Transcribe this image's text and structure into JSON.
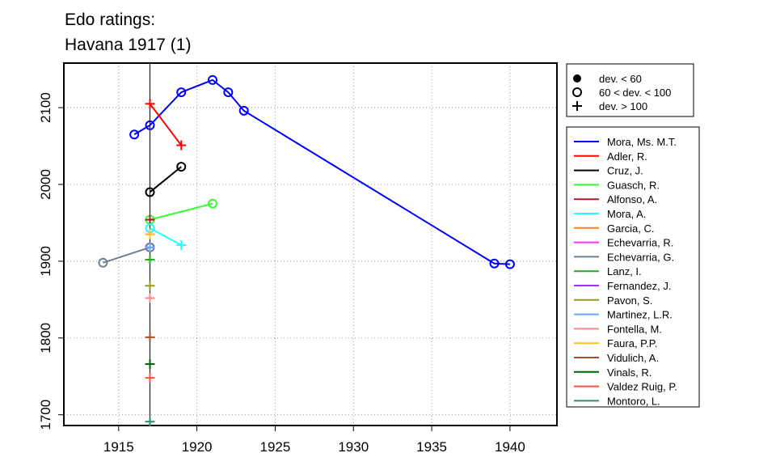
{
  "chart_data": {
    "type": "line",
    "title": [
      "Edo ratings:",
      "Havana 1917 (1)"
    ],
    "xlim": [
      1911.5,
      1943
    ],
    "ylim": [
      1686,
      2158
    ],
    "x_ticks": [
      1915,
      1920,
      1925,
      1930,
      1935,
      1940
    ],
    "y_ticks": [
      1700,
      1800,
      1900,
      2000,
      2100
    ],
    "grid": true,
    "vline_x": 1917,
    "marker_legend": [
      {
        "marker": "dot",
        "label": "dev. < 60"
      },
      {
        "marker": "circle",
        "label": "60 < dev. < 100"
      },
      {
        "marker": "plus",
        "label": "dev. > 100"
      }
    ],
    "legend_position": "right",
    "series": [
      {
        "name": "Mora, Ms. M.T.",
        "color": "#0000ff",
        "points": [
          [
            1916,
            2065,
            "circle"
          ],
          [
            1917,
            2077,
            "circle"
          ],
          [
            1919,
            2120,
            "circle"
          ],
          [
            1921,
            2136,
            "circle"
          ],
          [
            1922,
            2120,
            "circle"
          ],
          [
            1923,
            2096,
            "circle"
          ],
          [
            1939,
            1897,
            "circle"
          ],
          [
            1940,
            1896,
            "circle"
          ]
        ]
      },
      {
        "name": "Adler, R.",
        "color": "#ff0000",
        "points": [
          [
            1917,
            2105,
            "plus"
          ],
          [
            1919,
            2051,
            "plus"
          ]
        ]
      },
      {
        "name": "Cruz, J.",
        "color": "#000000",
        "points": [
          [
            1917,
            1990,
            "circle"
          ],
          [
            1919,
            2023,
            "circle"
          ]
        ]
      },
      {
        "name": "Guasch, R.",
        "color": "#33ff33",
        "points": [
          [
            1917,
            1954,
            "circle"
          ],
          [
            1921,
            1975,
            "circle"
          ]
        ]
      },
      {
        "name": "Alfonso, A.",
        "color": "#b2182b",
        "points": [
          [
            1917,
            1954,
            "plus"
          ]
        ]
      },
      {
        "name": "Mora, A.",
        "color": "#22ffff",
        "points": [
          [
            1917,
            1943,
            "circle"
          ],
          [
            1919,
            1921,
            "plus"
          ]
        ]
      },
      {
        "name": "Garcia, C.",
        "color": "#ff7f27",
        "points": [
          [
            1917,
            1935,
            "plus"
          ]
        ]
      },
      {
        "name": "Echevarria, R.",
        "color": "#ff33ff",
        "points": [
          [
            1917,
            1918,
            "circle"
          ]
        ]
      },
      {
        "name": "Echevarria, G.",
        "color": "#708090",
        "points": [
          [
            1914,
            1898,
            "circle"
          ],
          [
            1917,
            1918,
            "circle"
          ]
        ]
      },
      {
        "name": "Lanz, I.",
        "color": "#22aa22",
        "points": [
          [
            1917,
            1902,
            "plus"
          ]
        ]
      },
      {
        "name": "Fernandez, J.",
        "color": "#9933ff",
        "points": [
          [
            1917,
            1918,
            "plus"
          ]
        ]
      },
      {
        "name": "Pavon, S.",
        "color": "#999922",
        "points": [
          [
            1917,
            1868,
            "plus"
          ]
        ]
      },
      {
        "name": "Martinez, L.R.",
        "color": "#66aaff",
        "points": [
          [
            1917,
            1918,
            "plus"
          ]
        ]
      },
      {
        "name": "Fontella, M.",
        "color": "#ff8888",
        "points": [
          [
            1917,
            1852,
            "plus"
          ]
        ]
      },
      {
        "name": "Faura, P.P.",
        "color": "#ffc125",
        "points": [
          [
            1917,
            1935,
            "plus"
          ]
        ]
      },
      {
        "name": "Vidulich, A.",
        "color": "#a0522d",
        "points": [
          [
            1917,
            1801,
            "plus"
          ]
        ]
      },
      {
        "name": "Vinals, R.",
        "color": "#006400",
        "points": [
          [
            1917,
            1766,
            "plus"
          ]
        ]
      },
      {
        "name": "Valdez Ruig, P.",
        "color": "#ff4f3f",
        "points": [
          [
            1917,
            1748,
            "plus"
          ]
        ]
      },
      {
        "name": "Montoro, L.",
        "color": "#2e8b72",
        "points": [
          [
            1917,
            1691,
            "plus"
          ]
        ]
      }
    ]
  }
}
